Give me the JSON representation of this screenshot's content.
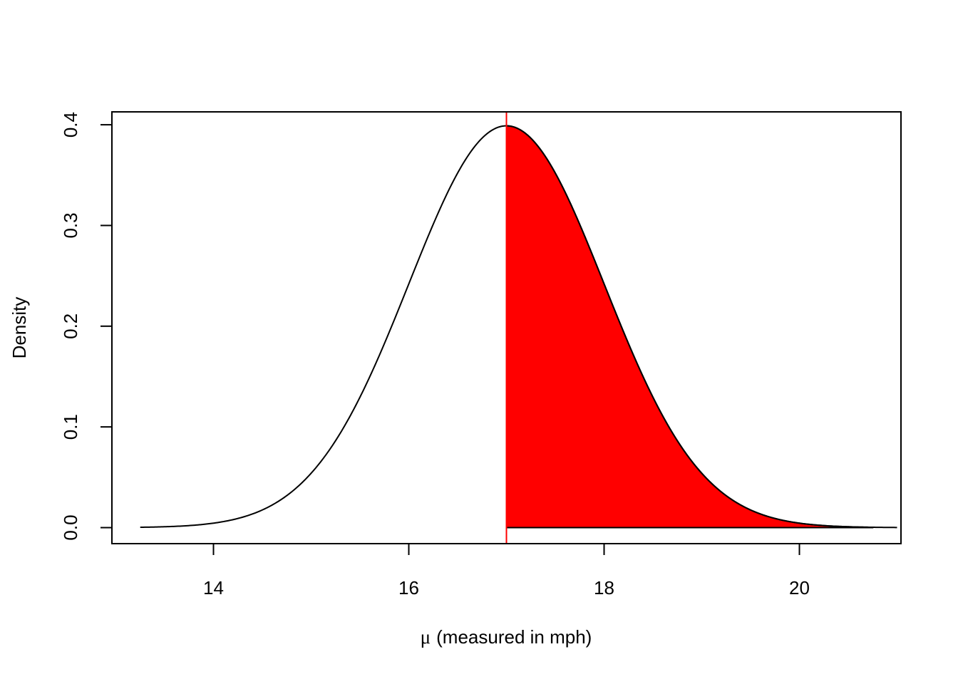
{
  "chart_data": {
    "type": "area",
    "title": "",
    "xlabel_symbol": "μ",
    "xlabel": "(measured in mph)",
    "ylabel": "Density",
    "xlim": [
      12.96,
      21.04
    ],
    "ylim": [
      -0.0159,
      0.4128
    ],
    "xticks": [
      14,
      16,
      18,
      20
    ],
    "xtick_labels": [
      "14",
      "16",
      "18",
      "20"
    ],
    "yticks": [
      0.0,
      0.1,
      0.2,
      0.3,
      0.4
    ],
    "ytick_labels": [
      "0.0",
      "0.1",
      "0.2",
      "0.3",
      "0.4"
    ],
    "grid": false,
    "legend": "none",
    "series": [
      {
        "kind": "density-curve",
        "distribution": "normal",
        "mean": 17,
        "sd": 1,
        "x_range": [
          13.25,
          21.0
        ],
        "color": "#000000"
      },
      {
        "kind": "shaded-tail",
        "from": 17,
        "to": 20.75,
        "fill": "#ff0000",
        "color": "#000000"
      }
    ],
    "reference_line": {
      "x": 17,
      "color": "#ff0000"
    }
  }
}
